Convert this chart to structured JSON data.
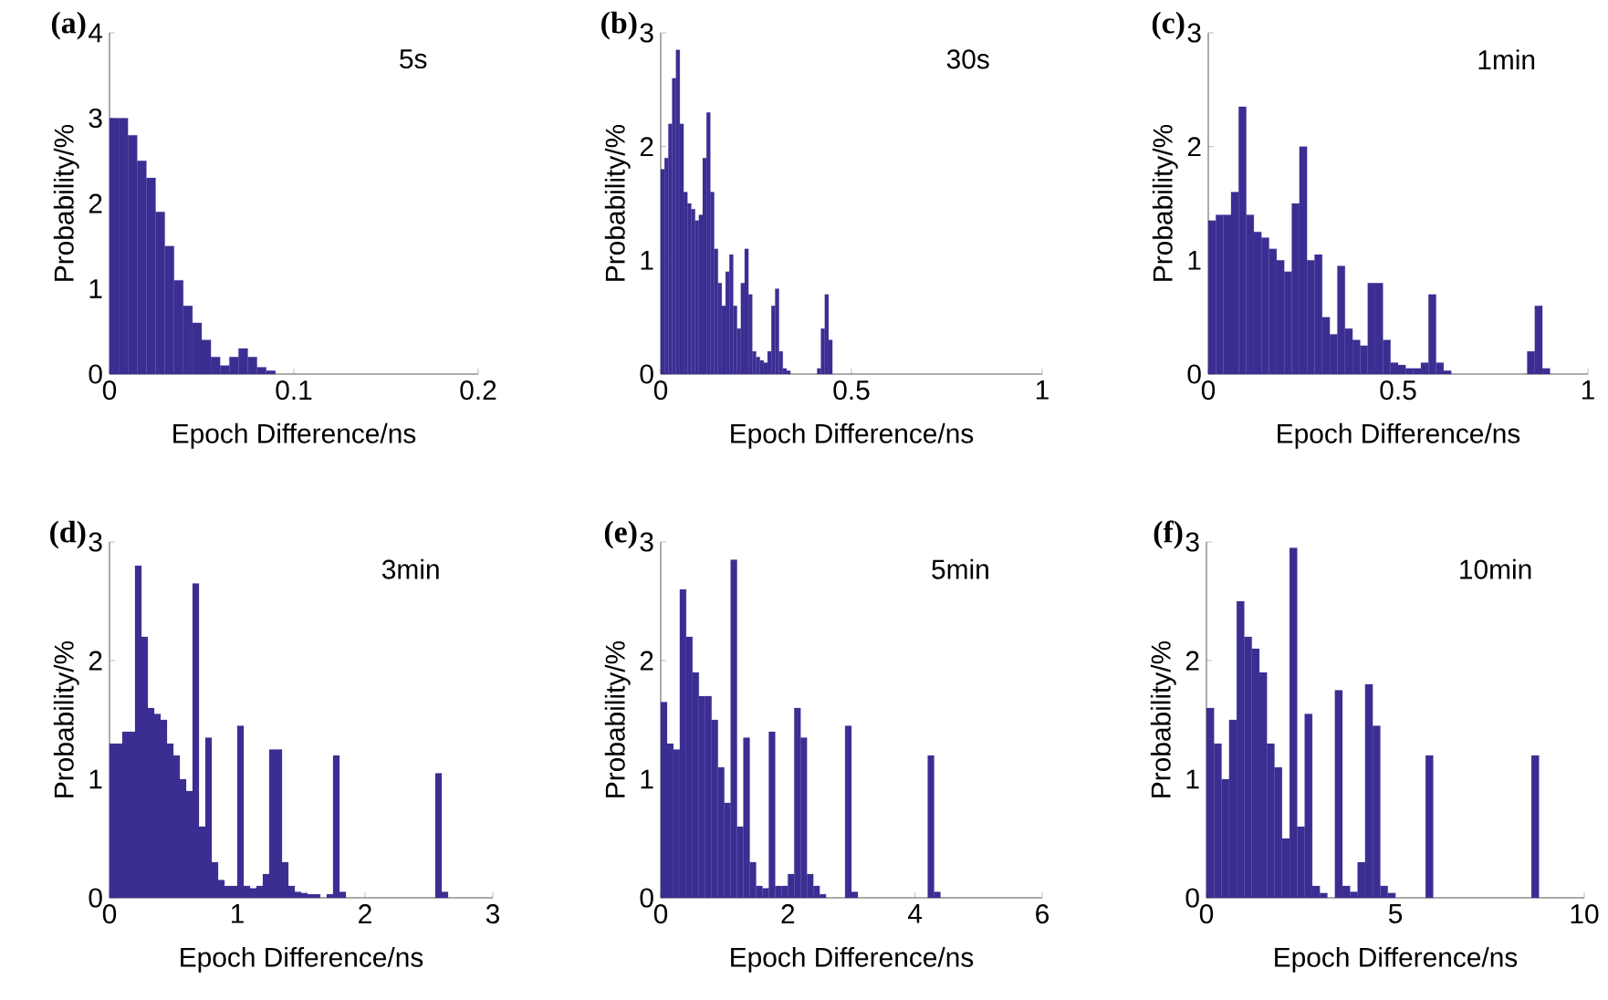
{
  "chart_data": [
    {
      "type": "histogram",
      "title": "(a)",
      "subtitle": "5s",
      "xlabel": "Epoch Difference/ns",
      "ylabel": "Probability/%",
      "color": "#3b2e93",
      "xlim": [
        0,
        0.2
      ],
      "ylim": [
        0,
        4
      ],
      "xticks": [
        0,
        0.1,
        0.2
      ],
      "yticks": [
        0,
        1,
        2,
        3,
        4
      ],
      "bins": [
        0,
        0.005,
        0.01,
        0.015,
        0.02,
        0.025,
        0.03,
        0.035,
        0.04,
        0.045,
        0.05,
        0.055,
        0.06,
        0.065,
        0.07,
        0.075,
        0.08,
        0.085,
        0.09,
        0.095,
        0.1
      ],
      "values": [
        3.0,
        3.0,
        2.8,
        2.5,
        2.3,
        1.9,
        1.5,
        1.1,
        0.8,
        0.6,
        0.4,
        0.2,
        0.1,
        0.2,
        0.3,
        0.2,
        0.08,
        0.04,
        null,
        null
      ]
    },
    {
      "type": "histogram",
      "title": "(b)",
      "subtitle": "30s",
      "xlabel": "Epoch Difference/ns",
      "ylabel": "Probability/%",
      "color": "#3b2e93",
      "xlim": [
        0,
        1
      ],
      "ylim": [
        0,
        3
      ],
      "xticks": [
        0,
        0.5,
        1
      ],
      "yticks": [
        0,
        1,
        2,
        3
      ],
      "bins": [
        0,
        0.01,
        0.02,
        0.03,
        0.04,
        0.05,
        0.06,
        0.07,
        0.08,
        0.09,
        0.1,
        0.11,
        0.12,
        0.13,
        0.14,
        0.15,
        0.16,
        0.17,
        0.18,
        0.19,
        0.2,
        0.21,
        0.22,
        0.23,
        0.24,
        0.25,
        0.26,
        0.27,
        0.28,
        0.29,
        0.3,
        0.31,
        0.32,
        0.33,
        0.34,
        0.35,
        0.36,
        0.37,
        0.38,
        0.39,
        0.4,
        0.41,
        0.42,
        0.43,
        0.44,
        0.45,
        0.46,
        0.47,
        0.48,
        0.49,
        0.5
      ],
      "values": [
        1.8,
        1.9,
        2.2,
        2.6,
        2.85,
        2.2,
        1.6,
        1.5,
        1.45,
        1.35,
        1.4,
        1.9,
        2.3,
        1.6,
        1.1,
        0.8,
        0.6,
        0.9,
        1.05,
        0.6,
        0.4,
        0.8,
        1.1,
        0.7,
        0.2,
        0.15,
        0.12,
        0.1,
        0.2,
        0.6,
        0.75,
        0.2,
        0.05,
        0.03,
        null,
        null,
        null,
        null,
        null,
        null,
        null,
        0.05,
        0.4,
        0.7,
        0.3,
        null,
        null,
        null,
        null,
        null
      ]
    },
    {
      "type": "histogram",
      "title": "(c)",
      "subtitle": "1min",
      "xlabel": "Epoch Difference/ns",
      "ylabel": "Probability/%",
      "color": "#3b2e93",
      "xlim": [
        0,
        1
      ],
      "ylim": [
        0,
        3
      ],
      "xticks": [
        0,
        0.5,
        1
      ],
      "yticks": [
        0,
        1,
        2,
        3
      ],
      "bins": [
        0,
        0.02,
        0.04,
        0.06,
        0.08,
        0.1,
        0.12,
        0.14,
        0.16,
        0.18,
        0.2,
        0.22,
        0.24,
        0.26,
        0.28,
        0.3,
        0.32,
        0.34,
        0.36,
        0.38,
        0.4,
        0.42,
        0.44,
        0.46,
        0.48,
        0.5,
        0.52,
        0.54,
        0.56,
        0.58,
        0.6,
        0.62,
        0.64,
        0.66,
        0.68,
        0.7,
        0.72,
        0.74,
        0.76,
        0.78,
        0.8,
        0.82,
        0.84,
        0.86,
        0.88,
        0.9,
        0.92,
        0.94,
        0.96,
        0.98,
        1
      ],
      "values": [
        1.35,
        1.4,
        1.4,
        1.6,
        2.35,
        1.4,
        1.25,
        1.2,
        1.1,
        1.0,
        0.9,
        1.5,
        2.0,
        1.0,
        1.05,
        0.5,
        0.35,
        0.95,
        0.4,
        0.3,
        0.25,
        0.8,
        0.8,
        0.3,
        0.1,
        0.08,
        0.05,
        0.05,
        0.1,
        0.7,
        0.1,
        0.03,
        null,
        null,
        null,
        null,
        null,
        null,
        null,
        null,
        null,
        null,
        0.2,
        0.6,
        0.05,
        null,
        null,
        null,
        null,
        null
      ]
    },
    {
      "type": "histogram",
      "title": "(d)",
      "subtitle": "3min",
      "xlabel": "Epoch Difference/ns",
      "ylabel": "Probability/%",
      "color": "#3b2e93",
      "xlim": [
        0,
        3
      ],
      "ylim": [
        0,
        3
      ],
      "xticks": [
        0,
        1,
        2,
        3
      ],
      "yticks": [
        0,
        1,
        2,
        3
      ],
      "bins": [
        0,
        0.05,
        0.1,
        0.15,
        0.2,
        0.25,
        0.3,
        0.35,
        0.4,
        0.45,
        0.5,
        0.55,
        0.6,
        0.65,
        0.7,
        0.75,
        0.8,
        0.85,
        0.9,
        0.95,
        1,
        1.05,
        1.1,
        1.15,
        1.2,
        1.25,
        1.3,
        1.35,
        1.4,
        1.45,
        1.5,
        1.55,
        1.6,
        1.65,
        1.7,
        1.75,
        1.8,
        1.85,
        1.9,
        1.95,
        2,
        2.05,
        2.1,
        2.15,
        2.2,
        2.25,
        2.3,
        2.35,
        2.4,
        2.45,
        2.5,
        2.55,
        2.6,
        2.65,
        2.7,
        2.75,
        2.8,
        2.85,
        2.9,
        2.95,
        3
      ],
      "values": [
        1.3,
        1.3,
        1.4,
        1.4,
        2.8,
        2.2,
        1.6,
        1.55,
        1.5,
        1.3,
        1.2,
        1.0,
        0.9,
        2.65,
        0.6,
        1.35,
        0.3,
        0.15,
        0.1,
        0.1,
        1.45,
        0.1,
        0.08,
        0.1,
        0.2,
        1.25,
        1.25,
        0.3,
        0.1,
        0.05,
        0.04,
        0.03,
        0.03,
        null,
        0.03,
        1.2,
        0.05,
        null,
        null,
        null,
        null,
        null,
        null,
        null,
        null,
        null,
        null,
        null,
        null,
        null,
        null,
        1.05,
        0.05,
        null,
        null,
        null,
        null,
        null,
        null,
        null
      ]
    },
    {
      "type": "histogram",
      "title": "(e)",
      "subtitle": "5min",
      "xlabel": "Epoch Difference/ns",
      "ylabel": "Probability/%",
      "color": "#3b2e93",
      "xlim": [
        0,
        6
      ],
      "ylim": [
        0,
        3
      ],
      "xticks": [
        0,
        2,
        4,
        6
      ],
      "yticks": [
        0,
        1,
        2,
        3
      ],
      "bins": [
        0,
        0.1,
        0.2,
        0.3,
        0.4,
        0.5,
        0.6,
        0.7,
        0.8,
        0.9,
        1,
        1.1,
        1.2,
        1.3,
        1.4,
        1.5,
        1.6,
        1.7,
        1.8,
        1.9,
        2,
        2.1,
        2.2,
        2.3,
        2.4,
        2.5,
        2.6,
        2.7,
        2.8,
        2.9,
        3,
        3.1,
        3.2,
        3.3,
        3.4,
        3.5,
        3.6,
        3.7,
        3.8,
        3.9,
        4,
        4.1,
        4.2,
        4.3,
        4.4,
        4.5,
        4.6,
        4.7,
        4.8,
        4.9,
        5,
        5.1,
        5.2,
        5.3,
        5.4,
        5.5,
        5.6,
        5.7,
        5.8,
        5.9,
        6
      ],
      "values": [
        1.65,
        1.3,
        1.25,
        2.6,
        2.2,
        1.9,
        1.7,
        1.7,
        1.5,
        1.1,
        0.8,
        2.85,
        0.6,
        1.35,
        0.3,
        0.1,
        0.08,
        1.4,
        0.1,
        0.1,
        0.2,
        1.6,
        1.35,
        0.2,
        0.1,
        0.03,
        null,
        null,
        null,
        1.45,
        0.05,
        null,
        null,
        null,
        null,
        null,
        null,
        null,
        null,
        null,
        null,
        null,
        1.2,
        0.05,
        null,
        null,
        null,
        null,
        null,
        null,
        null,
        null,
        null,
        null,
        null,
        null,
        null,
        null,
        null,
        null
      ]
    },
    {
      "type": "histogram",
      "title": "(f)",
      "subtitle": "10min",
      "xlabel": "Epoch Difference/ns",
      "ylabel": "Probability/%",
      "color": "#3b2e93",
      "xlim": [
        0,
        10
      ],
      "ylim": [
        0,
        3
      ],
      "xticks": [
        0,
        5,
        10
      ],
      "yticks": [
        0,
        1,
        2,
        3
      ],
      "bins": [
        0,
        0.2,
        0.4,
        0.6,
        0.8,
        1,
        1.2,
        1.4,
        1.6,
        1.8,
        2,
        2.2,
        2.4,
        2.6,
        2.8,
        3,
        3.2,
        3.4,
        3.6,
        3.8,
        4,
        4.2,
        4.4,
        4.6,
        4.8,
        5,
        5.2,
        5.4,
        5.6,
        5.8,
        6,
        6.2,
        6.4,
        6.6,
        6.8,
        7,
        7.2,
        7.4,
        7.6,
        7.8,
        8,
        8.2,
        8.4,
        8.6,
        8.8,
        9,
        9.2,
        9.4,
        9.6,
        9.8,
        10
      ],
      "values": [
        1.6,
        1.3,
        1.0,
        1.5,
        2.5,
        2.2,
        2.1,
        1.9,
        1.3,
        1.1,
        0.5,
        2.95,
        0.6,
        1.55,
        0.1,
        0.04,
        null,
        1.75,
        0.1,
        0.05,
        0.3,
        1.8,
        1.45,
        0.1,
        0.04,
        null,
        null,
        null,
        null,
        1.2,
        null,
        null,
        null,
        null,
        null,
        null,
        null,
        null,
        null,
        null,
        null,
        null,
        null,
        1.2,
        null,
        null,
        null,
        null,
        null,
        null
      ]
    }
  ]
}
